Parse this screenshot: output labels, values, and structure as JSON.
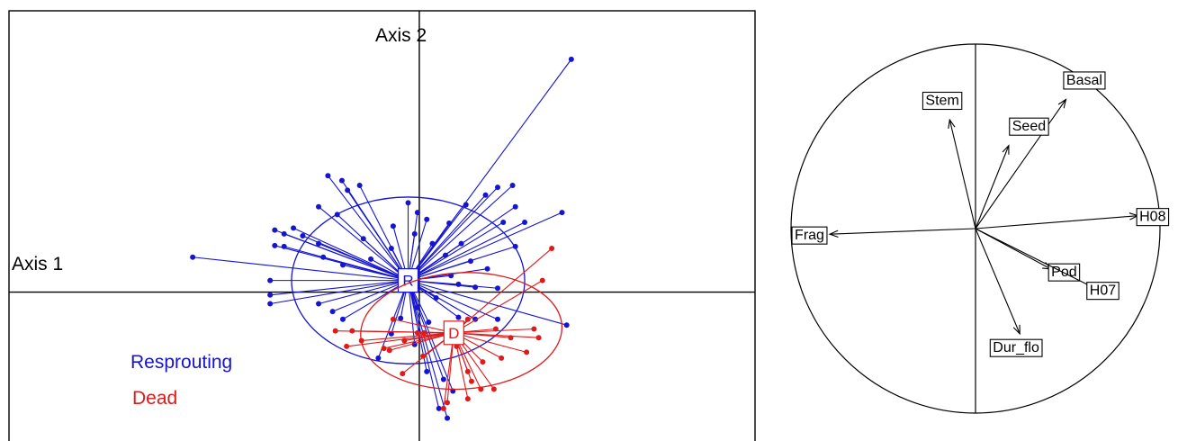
{
  "colors": {
    "resprouting": "#1414d2",
    "dead": "#e01a1a",
    "frame": "#000000",
    "background": "#ffffff"
  },
  "chart_data": [
    {
      "type": "scatter",
      "axis1_label": "Axis 1",
      "axis2_label": "Axis 2",
      "xlim": [
        -4.4,
        3.6
      ],
      "ylim": [
        -1.6,
        2.9
      ],
      "axes_crossing": [
        0,
        0
      ],
      "grid": false,
      "legend_placement": "bottom-left",
      "legend": [
        {
          "label": "Resprouting",
          "color_key": "resprouting"
        },
        {
          "label": "Dead",
          "color_key": "dead"
        }
      ],
      "groups": [
        {
          "key": "resprouting",
          "label": "R",
          "legend_label": "Resprouting",
          "centroid": [
            -0.12,
            0.12
          ],
          "ellipse": {
            "cx": -0.12,
            "cy": 0.12,
            "rx": 1.25,
            "ry": 0.86,
            "angle": 0
          },
          "points": [
            [
              1.63,
              2.4
            ],
            [
              -2.43,
              0.36
            ],
            [
              -1.55,
              0.64
            ],
            [
              -1.45,
              0.6
            ],
            [
              -1.55,
              0.48
            ],
            [
              -1.45,
              0.47
            ],
            [
              -1.35,
              0.66
            ],
            [
              -1.25,
              0.58
            ],
            [
              -1.08,
              0.5
            ],
            [
              -1.03,
              0.36
            ],
            [
              -1.6,
              -0.03
            ],
            [
              -1.6,
              -0.12
            ],
            [
              -1.6,
              0.12
            ],
            [
              -1.08,
              -0.12
            ],
            [
              -0.93,
              -0.2
            ],
            [
              -0.82,
              -0.28
            ],
            [
              -0.82,
              0.28
            ],
            [
              -0.6,
              0.55
            ],
            [
              -0.52,
              0.34
            ],
            [
              -0.3,
              0.45
            ],
            [
              -0.02,
              0.82
            ],
            [
              -0.28,
              0.68
            ],
            [
              -0.12,
              0.92
            ],
            [
              0.08,
              0.75
            ],
            [
              0.32,
              0.71
            ],
            [
              0.5,
              0.9
            ],
            [
              0.71,
              1.0
            ],
            [
              0.84,
              1.08
            ],
            [
              1.0,
              1.1
            ],
            [
              1.03,
              0.88
            ],
            [
              1.53,
              0.82
            ],
            [
              0.9,
              0.72
            ],
            [
              1.13,
              0.72
            ],
            [
              -0.05,
              0.6
            ],
            [
              0.14,
              0.5
            ],
            [
              0.45,
              0.5
            ],
            [
              0.28,
              0.38
            ],
            [
              0.55,
              0.32
            ],
            [
              1.03,
              0.47
            ],
            [
              0.73,
              0.24
            ],
            [
              0.34,
              0.17
            ],
            [
              0.42,
              0.08
            ],
            [
              0.6,
              0.05
            ],
            [
              0.84,
              0.04
            ],
            [
              0.18,
              -0.06
            ],
            [
              -0.02,
              -0.16
            ],
            [
              -0.2,
              -0.27
            ],
            [
              0.1,
              -0.31
            ],
            [
              0.42,
              -0.26
            ],
            [
              0.6,
              -0.28
            ],
            [
              0.84,
              -0.28
            ],
            [
              1.58,
              -0.34
            ],
            [
              -0.3,
              -0.43
            ],
            [
              -0.05,
              -0.54
            ],
            [
              -0.44,
              -0.68
            ],
            [
              0.08,
              -0.82
            ],
            [
              0.26,
              -0.9
            ],
            [
              0.36,
              -1.02
            ],
            [
              0.21,
              -1.2
            ],
            [
              0.3,
              -1.3
            ],
            [
              -0.88,
              0.8
            ],
            [
              -0.77,
              1.05
            ],
            [
              -0.98,
              1.2
            ],
            [
              -0.83,
              1.15
            ],
            [
              -1.08,
              0.88
            ],
            [
              -0.64,
              1.1
            ]
          ]
        },
        {
          "key": "dead",
          "label": "D",
          "legend_label": "Dead",
          "centroid": [
            0.37,
            -0.42
          ],
          "ellipse": {
            "cx": 0.45,
            "cy": -0.4,
            "rx": 1.08,
            "ry": 0.6,
            "angle": -3
          },
          "points": [
            [
              1.42,
              0.45
            ],
            [
              1.32,
              0.12
            ],
            [
              -0.28,
              -0.28
            ],
            [
              -0.72,
              -0.4
            ],
            [
              -0.9,
              -0.4
            ],
            [
              -0.78,
              -0.56
            ],
            [
              -0.62,
              -0.5
            ],
            [
              -0.38,
              -0.58
            ],
            [
              -0.16,
              -0.5
            ],
            [
              -0.02,
              -0.42
            ],
            [
              0.04,
              -0.66
            ],
            [
              -0.18,
              -0.84
            ],
            [
              -0.32,
              -0.6
            ],
            [
              0.52,
              -0.28
            ],
            [
              0.82,
              -0.38
            ],
            [
              0.98,
              -0.47
            ],
            [
              1.23,
              -0.38
            ],
            [
              1.28,
              -0.47
            ],
            [
              1.15,
              -0.62
            ],
            [
              0.88,
              -0.68
            ],
            [
              0.68,
              -0.72
            ],
            [
              0.52,
              -0.82
            ],
            [
              0.56,
              -0.92
            ],
            [
              0.66,
              -1.0
            ],
            [
              0.8,
              -1.0
            ],
            [
              0.3,
              -1.14
            ],
            [
              0.26,
              -1.2
            ],
            [
              0.52,
              -1.1
            ],
            [
              0.05,
              -0.42
            ],
            [
              0.4,
              -0.56
            ]
          ]
        }
      ]
    },
    {
      "type": "correlation-circle",
      "xlim": [
        -1,
        1
      ],
      "ylim": [
        -1,
        1
      ],
      "variables": [
        {
          "name": "Stem",
          "x": -0.14,
          "y": 0.59,
          "label_x": -0.18,
          "label_y": 0.7
        },
        {
          "name": "Basal",
          "x": 0.49,
          "y": 0.7,
          "label_x": 0.59,
          "label_y": 0.81
        },
        {
          "name": "Seed",
          "x": 0.18,
          "y": 0.45,
          "label_x": 0.29,
          "label_y": 0.56
        },
        {
          "name": "H08",
          "x": 0.88,
          "y": 0.07,
          "label_x": 0.96,
          "label_y": 0.07
        },
        {
          "name": "Frag",
          "x": -0.79,
          "y": -0.03,
          "label_x": -0.9,
          "label_y": -0.03
        },
        {
          "name": "Pod",
          "x": 0.41,
          "y": -0.22,
          "label_x": 0.48,
          "label_y": -0.23
        },
        {
          "name": "H07",
          "x": 0.66,
          "y": -0.33,
          "label_x": 0.69,
          "label_y": -0.33
        },
        {
          "name": "Dur_flo",
          "x": 0.24,
          "y": -0.57,
          "label_x": 0.22,
          "label_y": -0.64
        }
      ]
    }
  ]
}
